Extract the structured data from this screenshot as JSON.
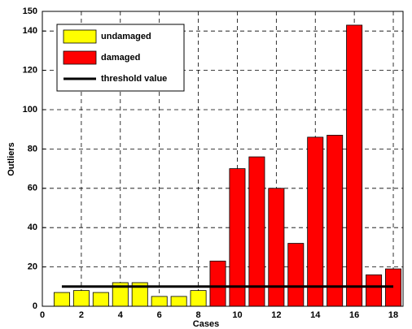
{
  "chart_data": {
    "type": "bar",
    "xlabel": "Cases",
    "ylabel": "Outliers",
    "xlim": [
      0,
      18.5
    ],
    "xticks": [
      0,
      2,
      4,
      6,
      8,
      10,
      12,
      14,
      16,
      18
    ],
    "ylim": [
      0,
      150
    ],
    "yticks": [
      0,
      20,
      40,
      60,
      80,
      100,
      120,
      140,
      150
    ],
    "grid": true,
    "legend": "upper left",
    "series": [
      {
        "name": "undamaged",
        "color": "#ffff00",
        "x": [
          1,
          2,
          3,
          4,
          5,
          6,
          7,
          8
        ],
        "values": [
          7,
          8,
          7,
          12,
          12,
          5,
          5,
          8
        ]
      },
      {
        "name": "damaged",
        "color": "#ff0000",
        "x": [
          9,
          10,
          11,
          12,
          13,
          14,
          15,
          16,
          17,
          18
        ],
        "values": [
          23,
          70,
          76,
          60,
          32,
          86,
          87,
          143,
          16,
          19
        ]
      },
      {
        "name": "threshold value",
        "type": "line",
        "color": "#000000",
        "x": [
          1,
          18
        ],
        "values": [
          10,
          10
        ]
      }
    ]
  }
}
